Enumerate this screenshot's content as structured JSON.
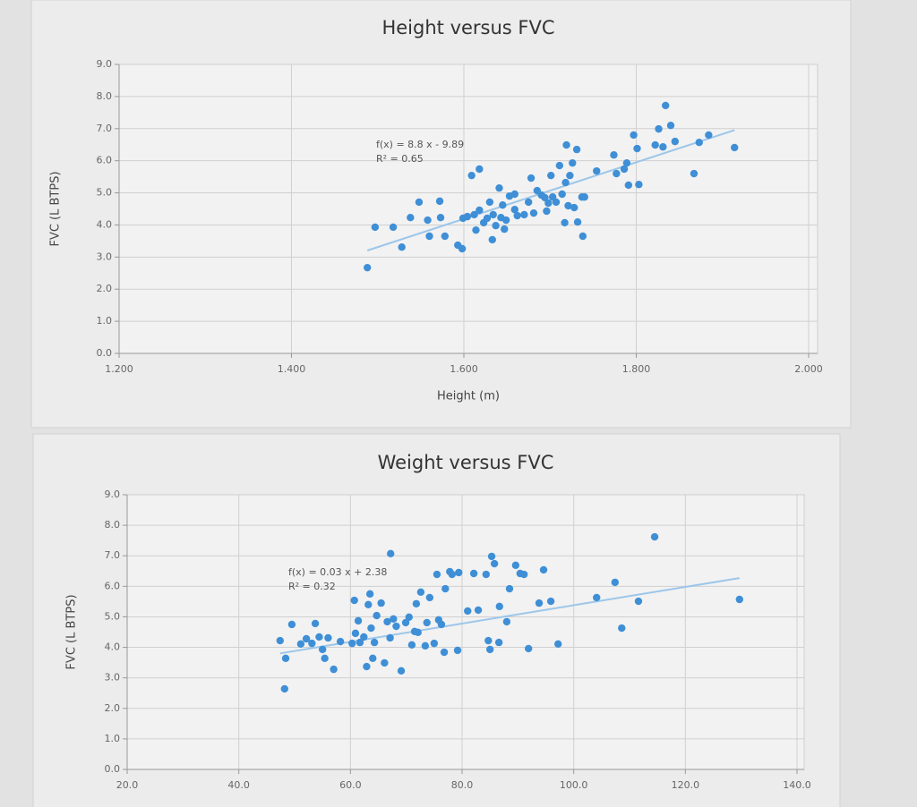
{
  "chart_data": [
    {
      "type": "scatter",
      "title": "Height versus FVC",
      "xlabel": "Height (m)",
      "ylabel": "FVC (L BTPS)",
      "color": "#3f8fd6",
      "trend_color": "#9cc6ea",
      "grid": true,
      "trendline": {
        "slope": 8.8,
        "intercept": -9.89
      },
      "annotations": [
        "f(x) = 8.8 x - 9.89",
        "R² = 0.65"
      ],
      "xlim": [
        1.2,
        2.0
      ],
      "ylim": [
        0,
        9
      ],
      "xticks": [
        {
          "value": 1.2,
          "label": "1.200"
        },
        {
          "value": 1.4,
          "label": "1.400"
        },
        {
          "value": 1.6,
          "label": "1.600"
        },
        {
          "value": 1.8,
          "label": "1.800"
        },
        {
          "value": 2.0,
          "label": "2.000"
        }
      ],
      "yticks": [
        {
          "value": 0,
          "label": "0.0"
        },
        {
          "value": 1,
          "label": "1.0"
        },
        {
          "value": 2,
          "label": "2.0"
        },
        {
          "value": 3,
          "label": "3.0"
        },
        {
          "value": 4,
          "label": "4.0"
        },
        {
          "value": 5,
          "label": "5.0"
        },
        {
          "value": 6,
          "label": "6.0"
        },
        {
          "value": 7,
          "label": "7.0"
        },
        {
          "value": 8,
          "label": "8.0"
        },
        {
          "value": 9,
          "label": "9.0"
        }
      ],
      "x": [
        1.488,
        1.497,
        1.518,
        1.528,
        1.538,
        1.548,
        1.558,
        1.56,
        1.572,
        1.573,
        1.578,
        1.593,
        1.598,
        1.599,
        1.604,
        1.609,
        1.612,
        1.614,
        1.618,
        1.618,
        1.623,
        1.627,
        1.63,
        1.633,
        1.634,
        1.637,
        1.641,
        1.643,
        1.645,
        1.647,
        1.649,
        1.653,
        1.659,
        1.659,
        1.662,
        1.67,
        1.675,
        1.678,
        1.681,
        1.685,
        1.69,
        1.694,
        1.696,
        1.698,
        1.701,
        1.703,
        1.707,
        1.711,
        1.714,
        1.717,
        1.718,
        1.719,
        1.721,
        1.723,
        1.726,
        1.728,
        1.731,
        1.732,
        1.737,
        1.738,
        1.74,
        1.754,
        1.774,
        1.777,
        1.786,
        1.789,
        1.791,
        1.797,
        1.801,
        1.803,
        1.822,
        1.826,
        1.831,
        1.834,
        1.84,
        1.845,
        1.867,
        1.873,
        1.884,
        1.914
      ],
      "values": [
        2.67,
        3.93,
        3.93,
        3.31,
        4.23,
        4.71,
        4.15,
        3.65,
        4.74,
        4.23,
        3.65,
        3.37,
        3.26,
        4.21,
        4.26,
        5.54,
        4.32,
        3.84,
        5.74,
        4.46,
        4.07,
        4.21,
        4.71,
        3.54,
        4.32,
        3.98,
        5.15,
        4.23,
        4.62,
        3.87,
        4.15,
        4.9,
        4.48,
        4.96,
        4.29,
        4.32,
        4.71,
        5.46,
        4.37,
        5.07,
        4.93,
        4.85,
        4.43,
        4.68,
        5.54,
        4.87,
        4.71,
        5.85,
        4.96,
        4.07,
        5.32,
        6.49,
        4.6,
        5.54,
        5.93,
        4.54,
        6.35,
        4.09,
        4.87,
        3.65,
        4.87,
        5.68,
        6.18,
        5.6,
        5.74,
        5.93,
        5.24,
        6.8,
        6.38,
        5.26,
        6.49,
        6.99,
        6.43,
        7.72,
        7.1,
        6.6,
        5.6,
        6.57,
        6.8,
        6.41
      ]
    },
    {
      "type": "scatter",
      "title": "Weight versus FVC",
      "ylabel": "FVC (L BTPS)",
      "color": "#3f8fd6",
      "trend_color": "#9cc6ea",
      "grid": true,
      "trendline": {
        "slope": 0.03,
        "intercept": 2.38
      },
      "annotations": [
        "f(x) = 0.03 x + 2.38",
        "R² = 0.32"
      ],
      "xlim": [
        20,
        140
      ],
      "ylim": [
        0,
        9
      ],
      "xticks": [
        {
          "value": 20,
          "label": "20.0"
        },
        {
          "value": 40,
          "label": "40.0"
        },
        {
          "value": 60,
          "label": "60.0"
        },
        {
          "value": 80,
          "label": "80.0"
        },
        {
          "value": 100,
          "label": "100.0"
        },
        {
          "value": 120,
          "label": "120.0"
        },
        {
          "value": 140,
          "label": "140.0"
        }
      ],
      "yticks": [
        {
          "value": 0,
          "label": "0.0"
        },
        {
          "value": 1,
          "label": "1.0"
        },
        {
          "value": 2,
          "label": "2.0"
        },
        {
          "value": 3,
          "label": "3.0"
        },
        {
          "value": 4,
          "label": "4.0"
        },
        {
          "value": 5,
          "label": "5.0"
        },
        {
          "value": 6,
          "label": "6.0"
        },
        {
          "value": 7,
          "label": "7.0"
        },
        {
          "value": 8,
          "label": "8.0"
        },
        {
          "value": 9,
          "label": "9.0"
        }
      ],
      "x": [
        47.4,
        48.2,
        48.4,
        49.5,
        51.1,
        52.1,
        53.1,
        53.7,
        54.4,
        55.0,
        55.4,
        56.0,
        57.0,
        58.2,
        60.3,
        60.7,
        60.9,
        61.4,
        61.7,
        62.4,
        62.9,
        63.2,
        63.5,
        63.7,
        64.0,
        64.3,
        64.7,
        65.5,
        66.1,
        66.6,
        67.1,
        67.2,
        67.7,
        68.2,
        69.1,
        69.9,
        70.5,
        71.0,
        71.5,
        71.8,
        72.1,
        72.6,
        73.4,
        73.7,
        74.2,
        75.0,
        75.5,
        75.8,
        76.3,
        76.8,
        77.0,
        77.8,
        78.2,
        79.2,
        79.4,
        81.0,
        82.1,
        82.9,
        84.3,
        84.7,
        85.0,
        85.3,
        85.8,
        86.6,
        86.7,
        88.0,
        88.5,
        89.6,
        90.4,
        91.1,
        91.9,
        93.8,
        94.6,
        95.9,
        97.2,
        104.1,
        107.4,
        108.6,
        111.6,
        114.5,
        129.7
      ],
      "values": [
        4.22,
        2.64,
        3.64,
        4.75,
        4.11,
        4.28,
        4.13,
        4.78,
        4.34,
        3.93,
        3.64,
        4.31,
        3.28,
        4.19,
        4.13,
        5.54,
        4.46,
        4.87,
        4.16,
        4.34,
        3.37,
        5.4,
        5.75,
        4.63,
        3.64,
        4.16,
        5.04,
        5.45,
        3.49,
        4.84,
        4.31,
        7.07,
        4.93,
        4.69,
        3.23,
        4.81,
        4.99,
        4.08,
        4.52,
        5.43,
        4.49,
        5.81,
        4.05,
        4.81,
        5.63,
        4.13,
        6.39,
        4.9,
        4.75,
        3.84,
        5.92,
        6.48,
        6.39,
        3.9,
        6.45,
        5.19,
        6.42,
        5.22,
        6.39,
        4.22,
        3.93,
        6.98,
        6.74,
        4.16,
        5.34,
        4.84,
        5.92,
        6.69,
        6.42,
        6.39,
        3.96,
        5.45,
        6.54,
        5.51,
        4.11,
        5.63,
        6.13,
        4.63,
        5.51,
        7.62,
        5.57
      ]
    }
  ]
}
